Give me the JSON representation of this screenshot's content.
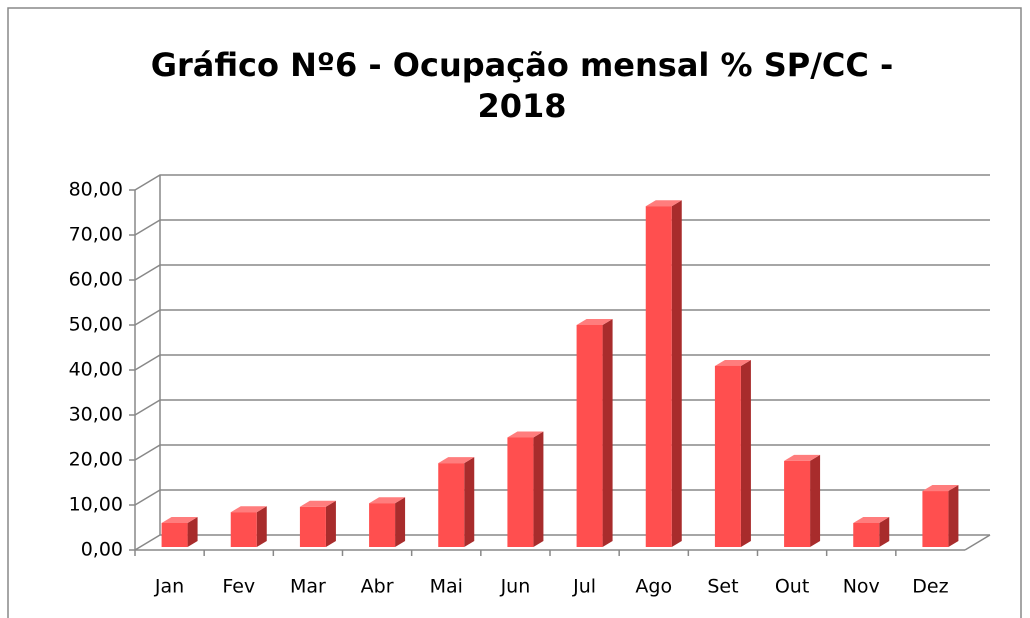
{
  "chart_data": {
    "type": "bar",
    "title": "Gráfico Nº6 - Ocupação mensal % SP/CC -",
    "subtitle": "2018",
    "categories": [
      "Jan",
      "Fev",
      "Mar",
      "Abr",
      "Mai",
      "Jun",
      "Jul",
      "Ago",
      "Set",
      "Out",
      "Nov",
      "Dez"
    ],
    "values": [
      6.0,
      8.4,
      9.6,
      10.4,
      19.3,
      25.0,
      50.0,
      76.4,
      40.9,
      19.8,
      6.0,
      13.1
    ],
    "color": "#ff4f4f",
    "ylim": [
      0,
      80
    ],
    "yticks": [
      {
        "value": 0,
        "label": "0,00"
      },
      {
        "value": 10,
        "label": "10,00"
      },
      {
        "value": 20,
        "label": "20,00"
      },
      {
        "value": 30,
        "label": "30,00"
      },
      {
        "value": 40,
        "label": "40,00"
      },
      {
        "value": 50,
        "label": "50,00"
      },
      {
        "value": 60,
        "label": "60,00"
      },
      {
        "value": 70,
        "label": "70,00"
      },
      {
        "value": 80,
        "label": "80,00"
      }
    ],
    "grid": true
  }
}
